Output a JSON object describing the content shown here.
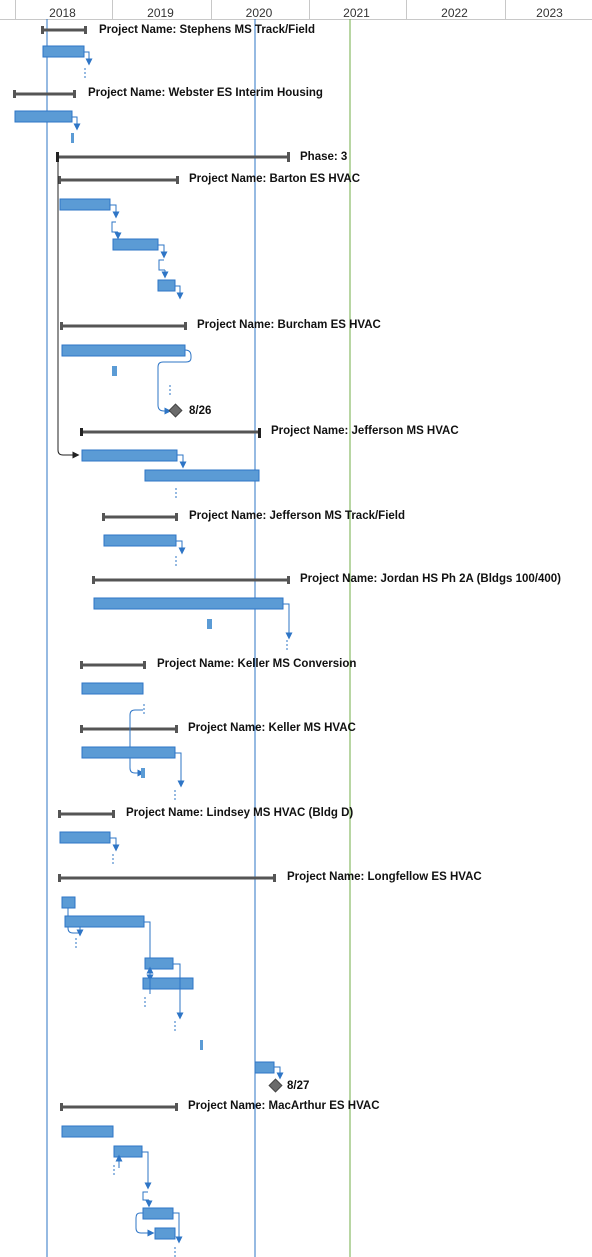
{
  "timescale": {
    "years": [
      "2018",
      "2019",
      "2020",
      "2021",
      "2022",
      "2023"
    ]
  },
  "colors": {
    "summary_bar": "#555555",
    "task_bar": "#5b9bd5",
    "task_bar_edge": "#2e75c6",
    "link": "#2e75c6",
    "today_line": "#2e75c6",
    "status_line": "#70ad47",
    "milestone": "#6b6b6b"
  },
  "rows": [
    {
      "label": "Project Name: Stephens MS Track/Field"
    },
    {
      "label": "Project Name: Webster ES Interim Housing"
    },
    {
      "label": "Phase: 3"
    },
    {
      "label": "Project Name: Barton ES HVAC"
    },
    {
      "label": "Project Name: Burcham ES HVAC"
    },
    {
      "label": "8/26"
    },
    {
      "label": "Project Name: Jefferson MS HVAC"
    },
    {
      "label": "Project Name: Jefferson MS Track/Field"
    },
    {
      "label": "Project Name: Jordan HS Ph 2A (Bldgs 100/400)"
    },
    {
      "label": "Project Name: Keller MS Conversion"
    },
    {
      "label": "Project Name: Keller MS HVAC"
    },
    {
      "label": "Project Name: Lindsey MS HVAC (Bldg D)"
    },
    {
      "label": "Project Name: Longfellow ES HVAC"
    },
    {
      "label": "8/27"
    },
    {
      "label": "Project Name: MacArthur ES HVAC"
    }
  ]
}
